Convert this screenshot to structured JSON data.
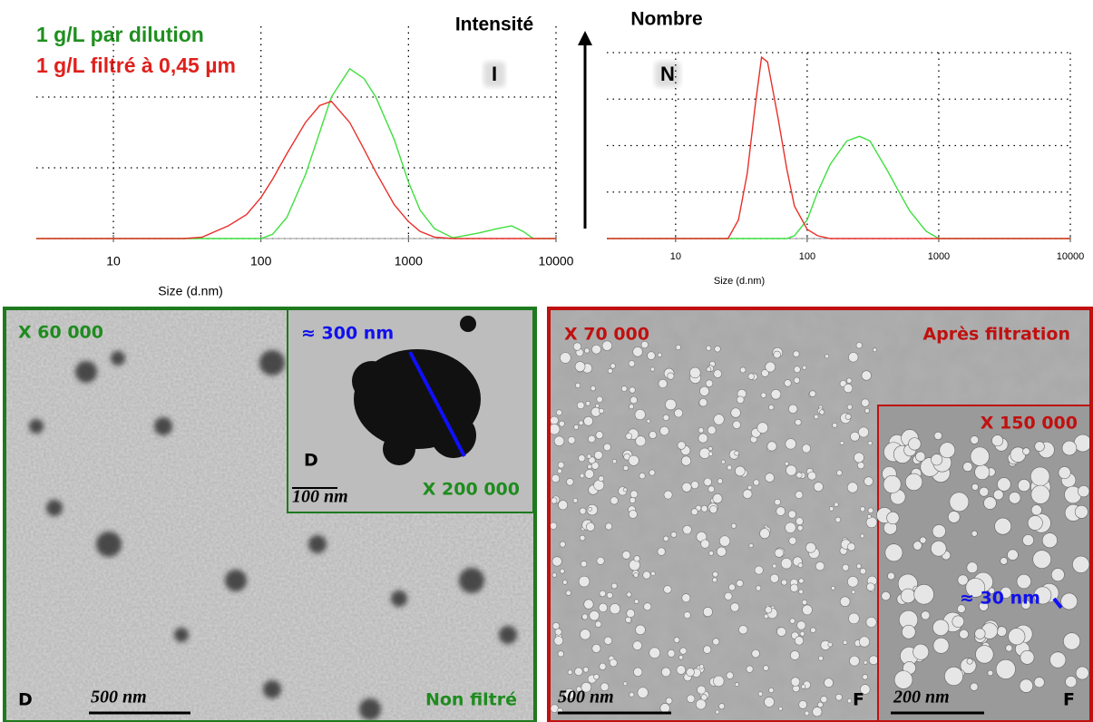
{
  "chart_data": [
    {
      "type": "line",
      "title": "Intensité",
      "panel": "I",
      "x_label": "Size (d.nm)",
      "xscale": "log",
      "x": [
        3,
        10,
        30,
        40,
        60,
        80,
        100,
        120,
        150,
        200,
        250,
        300,
        400,
        500,
        600,
        800,
        1000,
        1200,
        1500,
        2000,
        3000,
        4000,
        5000,
        6000,
        7000,
        10000
      ],
      "series": [
        {
          "name": "1 g/L par dilution",
          "color": "#3ee03e",
          "values": [
            0,
            0,
            0,
            0,
            0,
            0,
            0,
            0.3,
            1.5,
            4.5,
            7.5,
            10,
            12,
            11.3,
            10,
            7,
            4,
            2,
            0.7,
            0.05,
            0.4,
            0.7,
            0.9,
            0.5,
            0,
            0
          ]
        },
        {
          "name": "1 g/L filtré à 0,45 µm",
          "color": "#e8302a",
          "values": [
            0,
            0,
            0,
            0.1,
            0.9,
            1.7,
            2.9,
            4.2,
            6,
            8.2,
            9.4,
            9.7,
            8.2,
            6.3,
            4.7,
            2.4,
            1.2,
            0.5,
            0.1,
            0,
            0,
            0,
            0,
            0,
            0,
            0
          ]
        }
      ],
      "xlim": [
        3,
        10000
      ],
      "xticks": [
        10,
        100,
        1000,
        10000
      ],
      "ylim": [
        0,
        15
      ],
      "yticks": [
        0,
        5,
        10
      ],
      "grid": true
    },
    {
      "type": "line",
      "title": "Nombre",
      "panel": "N",
      "x_label": "Size (d.nm)",
      "xscale": "log",
      "x": [
        3,
        10,
        25,
        30,
        35,
        40,
        45,
        50,
        60,
        70,
        80,
        100,
        120,
        150,
        200,
        250,
        300,
        400,
        500,
        600,
        800,
        1000,
        10000
      ],
      "series": [
        {
          "color": "#3ee03e",
          "values": [
            0,
            0,
            0,
            0,
            0,
            0,
            0,
            0,
            0,
            0,
            0.3,
            2,
            5,
            8,
            10.5,
            11,
            10.5,
            7.5,
            5,
            3,
            0.8,
            0,
            0
          ]
        },
        {
          "color": "#e8302a",
          "values": [
            0,
            0,
            0,
            2,
            7,
            14,
            19.5,
            19,
            13,
            7.5,
            3.5,
            1,
            0.3,
            0,
            0,
            0,
            0,
            0,
            0,
            0,
            0,
            0,
            0
          ]
        }
      ],
      "xlim": [
        3,
        10000
      ],
      "xticks": [
        10,
        100,
        1000,
        10000
      ],
      "ylim": [
        0,
        20
      ],
      "yticks": [
        0,
        5,
        10,
        15,
        20
      ],
      "grid": true
    }
  ],
  "micrographs": {
    "left": {
      "magnification": "X 60 000",
      "sample": "D",
      "scale": "500 nm",
      "status": "Non filtré",
      "inset": {
        "size": "≈ 300 nm",
        "sample": "D",
        "scale": "100 nm",
        "magnification": "X 200 000"
      }
    },
    "right": {
      "magnification": "X 70 000",
      "status": "Après filtration",
      "scale": "500 nm",
      "sample": "F",
      "inset": {
        "magnification": "X 150 000",
        "size": "≈ 30 nm",
        "scale": "200 nm",
        "sample": "F"
      }
    }
  }
}
